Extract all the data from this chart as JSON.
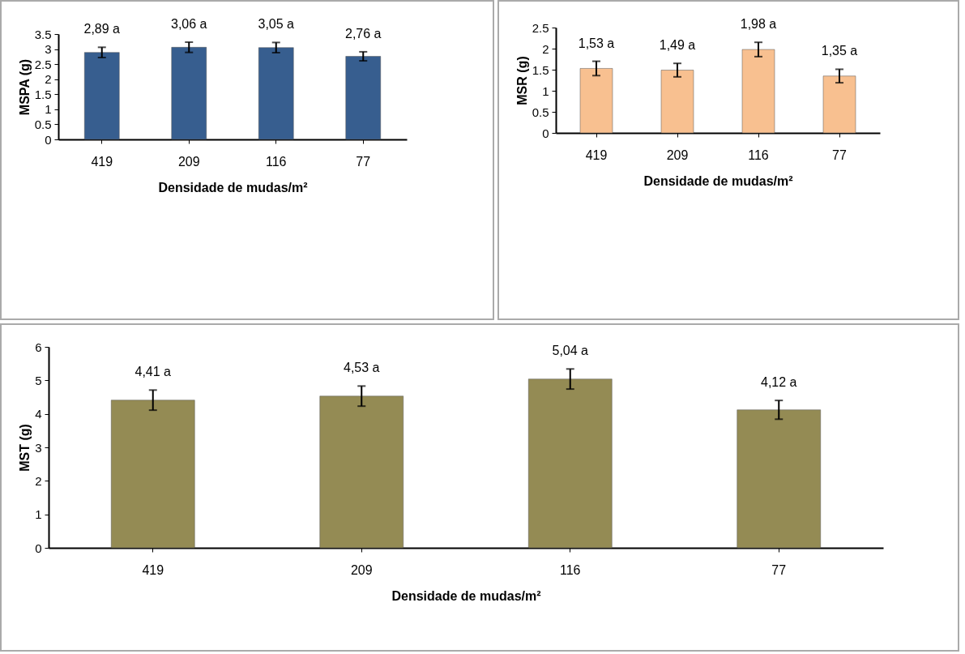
{
  "chart_data": [
    {
      "type": "bar",
      "categories": [
        "419",
        "209",
        "116",
        "77"
      ],
      "values": [
        2.89,
        3.06,
        3.05,
        2.76
      ],
      "errors": [
        0.17,
        0.17,
        0.17,
        0.15
      ],
      "value_labels": [
        "2,89 a",
        "3,06 a",
        "3,05 a",
        "2,76 a"
      ],
      "color": "#375e8f",
      "ylim": [
        0,
        3.5
      ],
      "yticks": [
        0,
        0.5,
        1,
        1.5,
        2,
        2.5,
        3,
        3.5
      ],
      "xlabel": "Densidade de mudas/m²",
      "ylabel": "MSPA (g)",
      "grid": false
    },
    {
      "type": "bar",
      "categories": [
        "419",
        "209",
        "116",
        "77"
      ],
      "values": [
        1.53,
        1.49,
        1.98,
        1.35
      ],
      "errors": [
        0.17,
        0.16,
        0.17,
        0.16
      ],
      "value_labels": [
        "1,53 a",
        "1,49 a",
        "1,98 a",
        "1,35 a"
      ],
      "color": "#f8c090",
      "ylim": [
        0,
        2.5
      ],
      "yticks": [
        0,
        0.5,
        1,
        1.5,
        2,
        2.5
      ],
      "xlabel": "Densidade de mudas/m²",
      "ylabel": "MSR (g)",
      "grid": false
    },
    {
      "type": "bar",
      "categories": [
        "419",
        "209",
        "116",
        "77"
      ],
      "values": [
        4.41,
        4.53,
        5.04,
        4.12
      ],
      "errors": [
        0.3,
        0.3,
        0.3,
        0.28
      ],
      "value_labels": [
        "4,41 a",
        "4,53 a",
        "5,04 a",
        "4,12 a"
      ],
      "color": "#948b54",
      "ylim": [
        0,
        6
      ],
      "yticks": [
        0,
        1,
        2,
        3,
        4,
        5,
        6
      ],
      "xlabel": "Densidade de mudas/m²",
      "ylabel": "MST (g)",
      "grid": false
    }
  ]
}
